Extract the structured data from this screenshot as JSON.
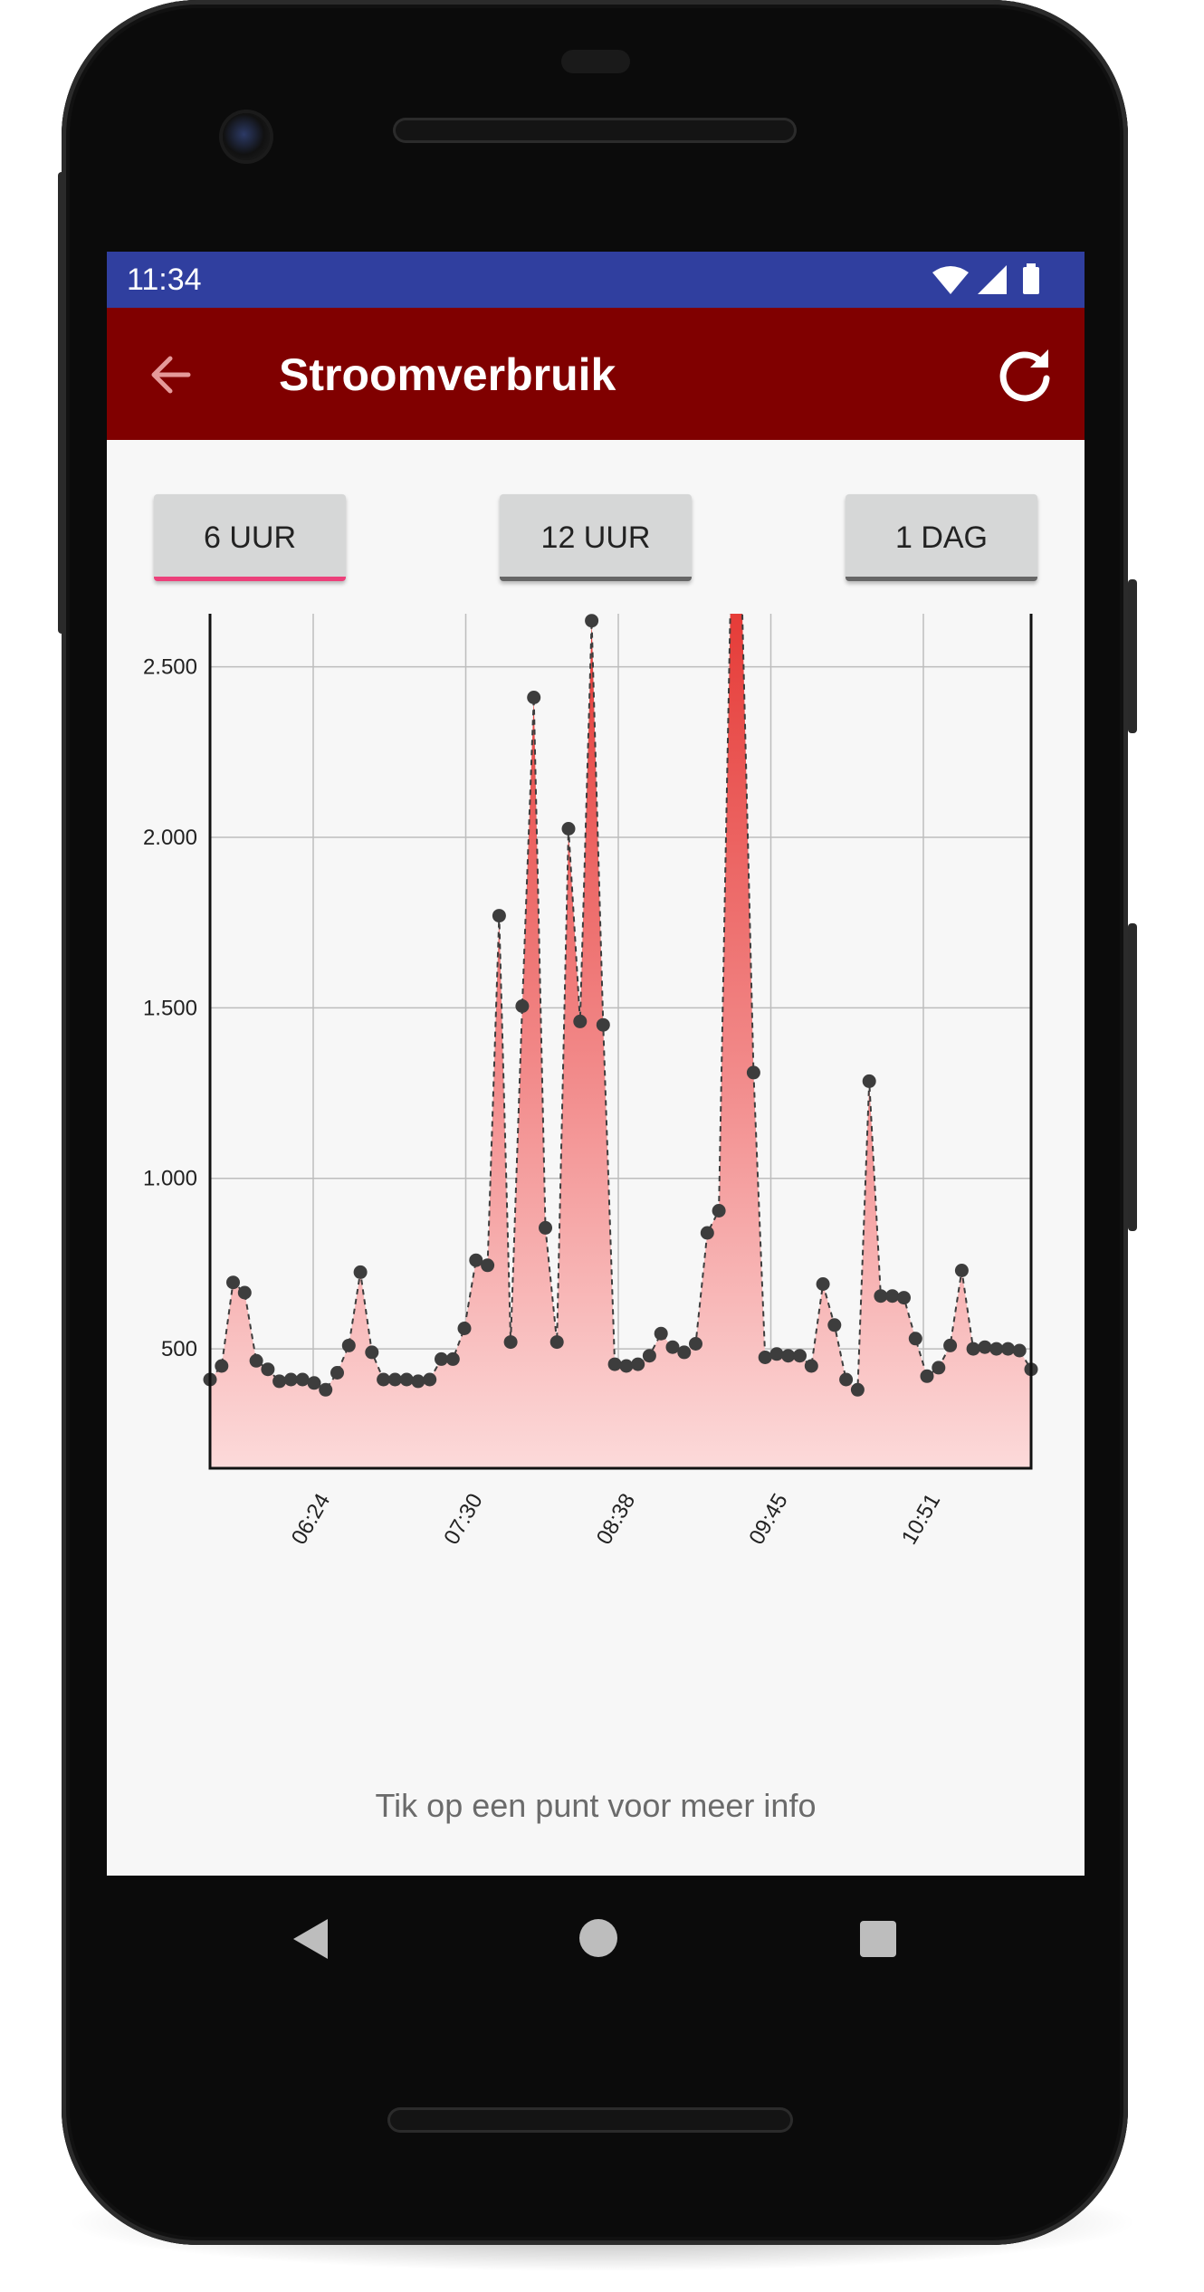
{
  "status": {
    "time": "11:34",
    "icons": [
      "wifi-icon",
      "signal-icon",
      "battery-icon"
    ]
  },
  "appbar": {
    "title": "Stroomverbruik",
    "back_icon": "arrow-left-icon",
    "refresh_icon": "refresh-icon",
    "color": "#800000"
  },
  "range_buttons": [
    {
      "label": "6 UUR",
      "active": true
    },
    {
      "label": "12 UUR",
      "active": false
    },
    {
      "label": "1 DAG",
      "active": false
    }
  ],
  "hint": "Tik op een punt voor meer info",
  "navbar": [
    "back-triangle-icon",
    "home-circle-icon",
    "recents-square-icon"
  ],
  "colors": {
    "status_bar": "#303f9f",
    "accent_underline": "#ec407a",
    "fill_top": "#e53935",
    "fill_bottom": "#fcdada",
    "point": "#3d3d3d"
  },
  "chart_data": {
    "type": "area",
    "title": "",
    "xlabel": "",
    "ylabel": "",
    "ylim": [
      150,
      2820
    ],
    "yticks": [
      500,
      1000,
      1500,
      2000,
      2500
    ],
    "ytick_labels": [
      "500",
      "1.000",
      "1.500",
      "2.000",
      "2.500"
    ],
    "xtick_labels": [
      "06:24",
      "07:30",
      "08:38",
      "09:45",
      "10:51"
    ],
    "grid": true,
    "series": [
      {
        "values": [
          410,
          450,
          695,
          665,
          465,
          440,
          405,
          410,
          410,
          400,
          380,
          430,
          510,
          725,
          490,
          410,
          410,
          410,
          405,
          410,
          470,
          470,
          560,
          760,
          745,
          1770,
          520,
          1505,
          2410,
          855,
          520,
          2025,
          1460,
          2635,
          1450,
          455,
          450,
          455,
          480,
          545,
          505,
          490,
          515,
          840,
          905,
          2690,
          2700,
          1310,
          475,
          485,
          480,
          480,
          450,
          690,
          570,
          410,
          380,
          1285,
          655,
          655,
          650,
          530,
          420,
          445,
          510,
          730,
          500,
          505,
          500,
          500,
          495,
          440
        ]
      }
    ]
  }
}
